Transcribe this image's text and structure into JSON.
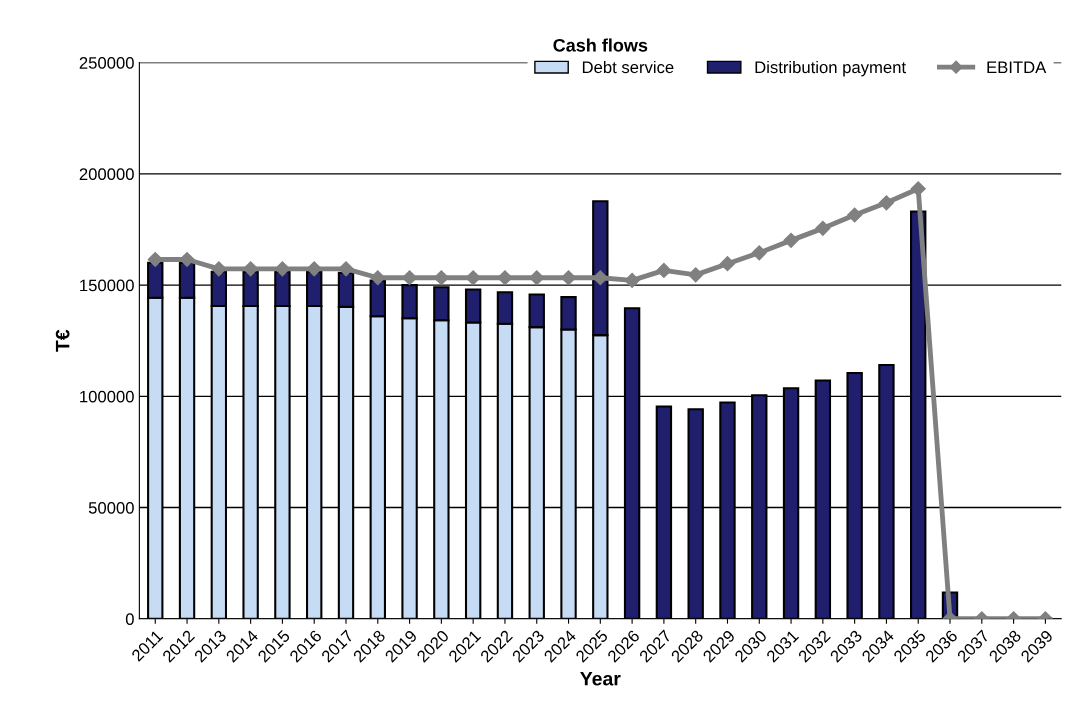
{
  "chart_data": {
    "type": "bar",
    "title": "Cash flows",
    "xlabel": "Year",
    "ylabel": "T€",
    "categories": [
      "2011",
      "2012",
      "2013",
      "2014",
      "2015",
      "2016",
      "2017",
      "2018",
      "2019",
      "2020",
      "2021",
      "2022",
      "2023",
      "2024",
      "2025",
      "2026",
      "2027",
      "2028",
      "2029",
      "2030",
      "2031",
      "2032",
      "2033",
      "2034",
      "2035",
      "2036",
      "2037",
      "2038",
      "2039"
    ],
    "stacked": true,
    "series": [
      {
        "name": "Debt service",
        "color": "#c6dcf5",
        "values": [
          144300,
          144300,
          140600,
          140600,
          140600,
          140600,
          140200,
          136000,
          135100,
          134200,
          133200,
          132600,
          131100,
          130000,
          127500,
          null,
          null,
          null,
          null,
          null,
          null,
          null,
          null,
          null,
          null,
          null,
          null,
          null,
          null
        ]
      },
      {
        "name": "Distribution payment",
        "color": "#1f1f6e",
        "values": [
          15700,
          15700,
          15400,
          15400,
          15400,
          15400,
          15300,
          16000,
          14900,
          14800,
          14800,
          14200,
          14700,
          14600,
          60200,
          139600,
          95400,
          94200,
          97200,
          100500,
          103600,
          107100,
          110500,
          114100,
          183100,
          11800,
          null,
          null,
          null
        ]
      },
      {
        "name": "EBITDA",
        "type": "line",
        "color": "#808080",
        "marker": "diamond",
        "values": [
          161500,
          161500,
          157300,
          157300,
          157300,
          157300,
          157300,
          153300,
          153300,
          153300,
          153300,
          153300,
          153300,
          153300,
          153300,
          152100,
          156600,
          154600,
          159600,
          164500,
          170100,
          175500,
          181500,
          187000,
          193300,
          0,
          0,
          0,
          0
        ]
      }
    ],
    "ylim": [
      0,
      250000
    ],
    "yticks": [
      0,
      50000,
      100000,
      150000,
      200000,
      250000
    ],
    "grid": "y",
    "legend": "top right"
  }
}
